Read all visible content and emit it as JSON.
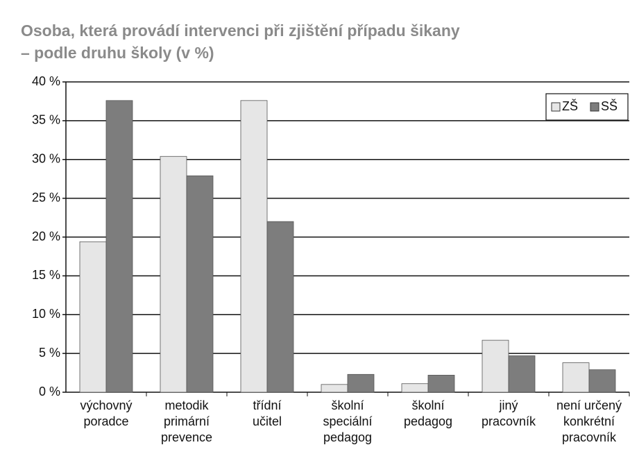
{
  "chart_data": {
    "type": "bar",
    "title": [
      "Osoba, která provádí intervenci při zjištění případu šikany",
      "– podle druhu školy (v %)"
    ],
    "categories": [
      [
        "výchovný",
        "poradce"
      ],
      [
        "metodik",
        "primární",
        "prevence"
      ],
      [
        "třídní",
        "učitel"
      ],
      [
        "školní",
        "speciální",
        "pedagog"
      ],
      [
        "školní",
        "pedagog"
      ],
      [
        "jiný",
        "pracovník"
      ],
      [
        "není určený",
        "konkrétní",
        "pracovník"
      ]
    ],
    "series": [
      {
        "name": "ZŠ",
        "color": "#e6e6e6",
        "values": [
          19.4,
          30.4,
          37.6,
          1.0,
          1.1,
          6.7,
          3.8
        ]
      },
      {
        "name": "SŠ",
        "color": "#7d7d7d",
        "values": [
          37.6,
          27.9,
          22.0,
          2.3,
          2.2,
          4.7,
          2.9
        ]
      }
    ],
    "ylim": [
      0,
      40
    ],
    "yticks": [
      {
        "value": 0,
        "label": "0 %"
      },
      {
        "value": 5,
        "label": "5 %"
      },
      {
        "value": 10,
        "label": "10 %"
      },
      {
        "value": 15,
        "label": "15 %"
      },
      {
        "value": 20,
        "label": "20 %"
      },
      {
        "value": 25,
        "label": "25 %"
      },
      {
        "value": 30,
        "label": "30 %"
      },
      {
        "value": 35,
        "label": "35 %"
      },
      {
        "value": 40,
        "label": "40 %"
      }
    ],
    "grid": true,
    "legend": "top-right"
  }
}
